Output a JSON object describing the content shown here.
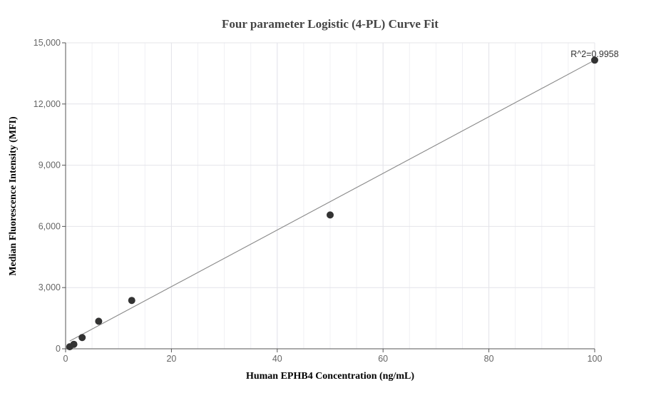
{
  "chart_data": {
    "type": "scatter",
    "title": "Four parameter Logistic (4-PL) Curve Fit",
    "xlabel": "Human EPHB4 Concentration (ng/mL)",
    "ylabel": "Median Fluorescence Intensity (MFI)",
    "xlim": [
      0,
      100
    ],
    "ylim": [
      0,
      15000
    ],
    "x_ticks": [
      "0",
      "20",
      "40",
      "60",
      "80",
      "100"
    ],
    "y_ticks": [
      "0",
      "3,000",
      "6,000",
      "9,000",
      "12,000",
      "15,000"
    ],
    "grid": true,
    "points": {
      "x": [
        0.78,
        1.56,
        3.13,
        6.25,
        12.5,
        50,
        100
      ],
      "y": [
        100,
        220,
        550,
        1350,
        2370,
        6560,
        14150
      ],
      "color": "#333333"
    },
    "fit_line": {
      "x": [
        0.78,
        100
      ],
      "y": [
        380,
        14150
      ],
      "color": "#888888"
    },
    "annotation": "R^2=0.9958"
  }
}
